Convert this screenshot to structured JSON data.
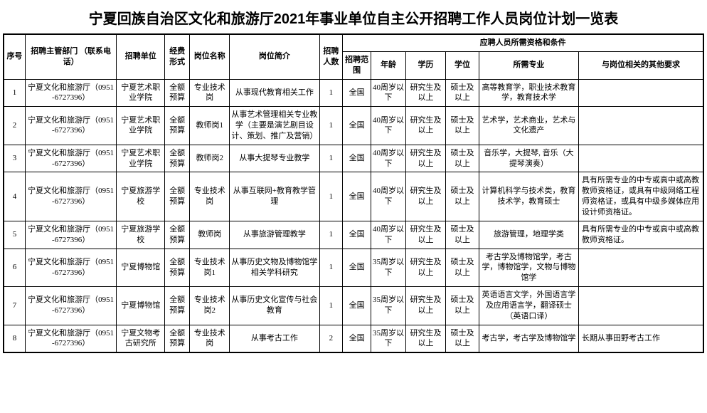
{
  "title": "宁夏回族自治区文化和旅游厅2021年事业单位自主公开招聘工作人员岗位计划一览表",
  "headers": {
    "seq": "序号",
    "dept": "招聘主管部门\n（联系电话）",
    "unit": "招聘单位",
    "fund": "经费形式",
    "post_name": "岗位名称",
    "post_desc": "岗位简介",
    "num": "招聘人数",
    "qual_group": "应聘人员所需资格和条件",
    "scope": "招聘范围",
    "age": "年龄",
    "edu": "学历",
    "deg": "学位",
    "major": "所需专业",
    "other": "与岗位相关的其他要求"
  },
  "rows": [
    {
      "seq": "1",
      "dept": "宁夏文化和旅游厅（0951-6727396）",
      "unit": "宁夏艺术职业学院",
      "fund": "全额预算",
      "post_name": "专业技术岗",
      "post_desc": "从事现代教育相关工作",
      "num": "1",
      "scope": "全国",
      "age": "40周岁以下",
      "edu": "研究生及以上",
      "deg": "硕士及以上",
      "major": "高等教育学，职业技术教育学，教育技术学",
      "other": ""
    },
    {
      "seq": "2",
      "dept": "宁夏文化和旅游厅（0951-6727396）",
      "unit": "宁夏艺术职业学院",
      "fund": "全额预算",
      "post_name": "教师岗1",
      "post_desc": "从事艺术管理相关专业教学（主要是演艺剧目设计、策划、推广及营销）",
      "num": "1",
      "scope": "全国",
      "age": "40周岁以下",
      "edu": "研究生及以上",
      "deg": "硕士及以上",
      "major": "艺术学，艺术商业，艺术与文化遗产",
      "other": ""
    },
    {
      "seq": "3",
      "dept": "宁夏文化和旅游厅（0951-6727396）",
      "unit": "宁夏艺术职业学院",
      "fund": "全额预算",
      "post_name": "教师岗2",
      "post_desc": "从事大提琴专业教学",
      "num": "1",
      "scope": "全国",
      "age": "40周岁以下",
      "edu": "研究生及以上",
      "deg": "硕士及以上",
      "major": "音乐学，大提琴, 音乐（大提琴演奏）",
      "other": ""
    },
    {
      "seq": "4",
      "dept": "宁夏文化和旅游厅（0951-6727396）",
      "unit": "宁夏旅游学校",
      "fund": "全额预算",
      "post_name": "专业技术岗",
      "post_desc": "从事互联网+教育教学管理",
      "num": "1",
      "scope": "全国",
      "age": "40周岁以下",
      "edu": "研究生及以上",
      "deg": "硕士及以上",
      "major": "计算机科学与技术类，教育技术学，教育硕士",
      "other": "具有所需专业的中专或高中或高教教师资格证，或具有中级网络工程师资格证，或具有中级多媒体应用设计师资格证。"
    },
    {
      "seq": "5",
      "dept": "宁夏文化和旅游厅（0951-6727396）",
      "unit": "宁夏旅游学校",
      "fund": "全额预算",
      "post_name": "教师岗",
      "post_desc": "从事旅游管理教学",
      "num": "1",
      "scope": "全国",
      "age": "40周岁以下",
      "edu": "研究生及以上",
      "deg": "硕士及以上",
      "major": "旅游管理，地理学类",
      "other": "具有所需专业的中专或高中或高教教师资格证。"
    },
    {
      "seq": "6",
      "dept": "宁夏文化和旅游厅（0951-6727396）",
      "unit": "宁夏博物馆",
      "fund": "全额预算",
      "post_name": "专业技术岗1",
      "post_desc": "从事历史文物及博物馆学相关学科研究",
      "num": "1",
      "scope": "全国",
      "age": "35周岁以下",
      "edu": "研究生及以上",
      "deg": "硕士及以上",
      "major": "考古学及博物馆学，考古学，博物馆学，文物与博物馆学",
      "other": ""
    },
    {
      "seq": "7",
      "dept": "宁夏文化和旅游厅（0951-6727396）",
      "unit": "宁夏博物馆",
      "fund": "全额预算",
      "post_name": "专业技术岗2",
      "post_desc": "从事历史文化宣传与社会教育",
      "num": "1",
      "scope": "全国",
      "age": "35周岁以下",
      "edu": "研究生及以上",
      "deg": "硕士及以上",
      "major": "英语语言文学，外国语言学及应用语言学，翻译硕士（英语口译）",
      "other": ""
    },
    {
      "seq": "8",
      "dept": "宁夏文化和旅游厅（0951-6727396）",
      "unit": "宁夏文物考古研究所",
      "fund": "全额预算",
      "post_name": "专业技术岗",
      "post_desc": "从事考古工作",
      "num": "2",
      "scope": "全国",
      "age": "35周岁以下",
      "edu": "研究生及以上",
      "deg": "硕士及以上",
      "major": "考古学，考古学及博物馆学",
      "other": "长期从事田野考古工作"
    }
  ]
}
